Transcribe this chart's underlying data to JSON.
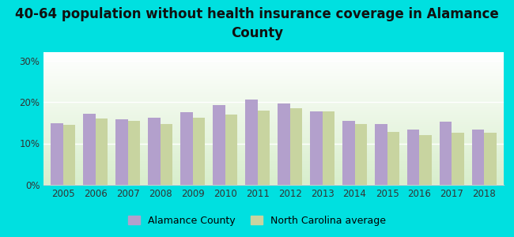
{
  "title": "40-64 population without health insurance coverage in Alamance\nCounty",
  "years": [
    2005,
    2006,
    2007,
    2008,
    2009,
    2010,
    2011,
    2012,
    2013,
    2014,
    2015,
    2016,
    2017,
    2018
  ],
  "alamance_values": [
    14.8,
    17.2,
    15.8,
    16.2,
    17.5,
    19.2,
    20.5,
    19.7,
    17.8,
    15.5,
    14.7,
    13.3,
    15.2,
    13.3
  ],
  "nc_values": [
    14.5,
    16.0,
    15.5,
    14.7,
    16.2,
    17.0,
    18.0,
    18.5,
    17.7,
    14.7,
    12.7,
    12.0,
    12.5,
    12.5
  ],
  "alamance_color": "#b3a0cc",
  "nc_color": "#c8d4a0",
  "background_outer": "#00e0e0",
  "background_plot_top": "#ffffff",
  "background_plot_bottom": "#d8eecc",
  "ylabel_ticks": [
    "0%",
    "10%",
    "20%",
    "30%"
  ],
  "ytick_values": [
    0,
    10,
    20,
    30
  ],
  "ylim": [
    0,
    32
  ],
  "legend_alamance": "Alamance County",
  "legend_nc": "North Carolina average",
  "title_fontsize": 12,
  "tick_fontsize": 8.5,
  "legend_fontsize": 9
}
